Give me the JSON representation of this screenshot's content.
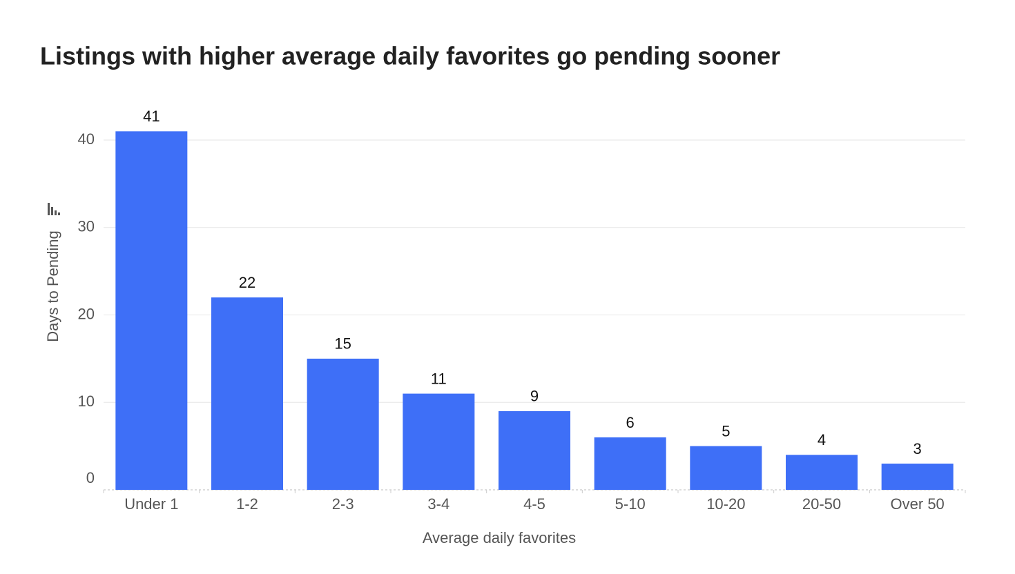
{
  "chart_data": {
    "type": "bar",
    "title": "Listings with higher average daily favorites go pending sooner",
    "x_label": "Average daily favorites",
    "y_label": "Days to Pending",
    "categories": [
      "Under 1",
      "1-2",
      "2-3",
      "3-4",
      "4-5",
      "5-10",
      "10-20",
      "20-50",
      "Over 50"
    ],
    "values": [
      41,
      22,
      15,
      11,
      9,
      6,
      5,
      4,
      3
    ],
    "color": "#3e6ff7",
    "ylim": [
      0,
      40
    ],
    "yticks": [
      0,
      10,
      20,
      30,
      40
    ],
    "grid": true
  }
}
